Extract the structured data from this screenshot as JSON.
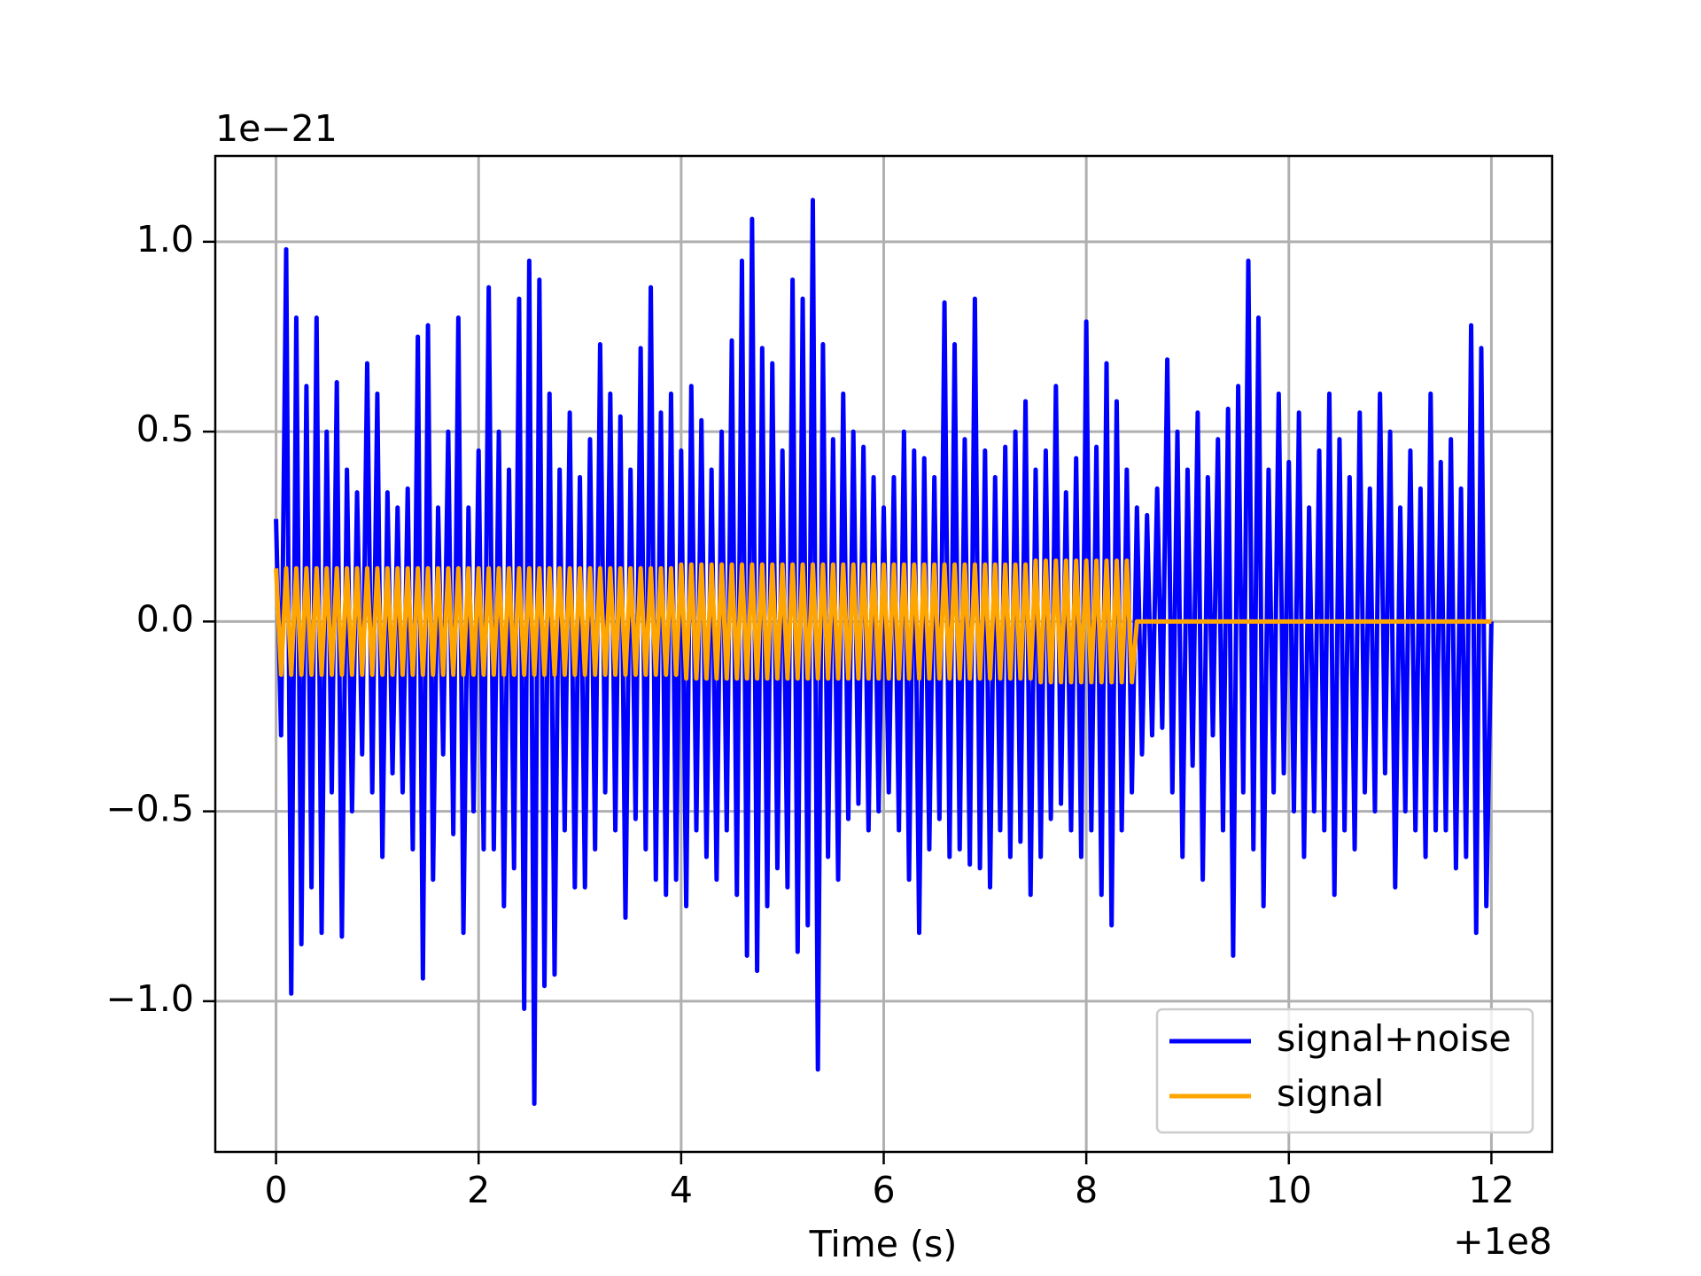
{
  "chart_data": {
    "type": "line",
    "xlabel": "Time (s)",
    "x_offset_label": "+1e8",
    "y_offset_label": "1e−21",
    "xlim": [
      -0.6,
      12.6
    ],
    "ylim": [
      -1.397,
      1.226
    ],
    "xticks": [
      0,
      2,
      4,
      6,
      8,
      10,
      12
    ],
    "yticks": [
      {
        "value": -1.0,
        "label": "−1.0"
      },
      {
        "value": -0.5,
        "label": "−0.5"
      },
      {
        "value": 0.0,
        "label": "0.0"
      },
      {
        "value": 0.5,
        "label": "0.5"
      },
      {
        "value": 1.0,
        "label": "1.0"
      }
    ],
    "grid": true,
    "legend": "lower right",
    "x": [
      0,
      0.05,
      0.1,
      0.15,
      0.2,
      0.25,
      0.3,
      0.35,
      0.4,
      0.45,
      0.5,
      0.55,
      0.6,
      0.65,
      0.7,
      0.75,
      0.8,
      0.85,
      0.9,
      0.95,
      1,
      1.05,
      1.1,
      1.15,
      1.2,
      1.25,
      1.3,
      1.35,
      1.4,
      1.45,
      1.5,
      1.55,
      1.6,
      1.65,
      1.7,
      1.75,
      1.8,
      1.85,
      1.9,
      1.95,
      2,
      2.05,
      2.1,
      2.15,
      2.2,
      2.25,
      2.3,
      2.35,
      2.4,
      2.45,
      2.5,
      2.55,
      2.6,
      2.65,
      2.7,
      2.75,
      2.8,
      2.85,
      2.9,
      2.95,
      3,
      3.05,
      3.1,
      3.15,
      3.2,
      3.25,
      3.3,
      3.35,
      3.4,
      3.45,
      3.5,
      3.55,
      3.6,
      3.65,
      3.7,
      3.75,
      3.8,
      3.85,
      3.9,
      3.95,
      4,
      4.05,
      4.1,
      4.15,
      4.2,
      4.25,
      4.3,
      4.35,
      4.4,
      4.45,
      4.5,
      4.55,
      4.6,
      4.65,
      4.7,
      4.75,
      4.8,
      4.85,
      4.9,
      4.95,
      5,
      5.05,
      5.1,
      5.15,
      5.2,
      5.25,
      5.3,
      5.35,
      5.4,
      5.45,
      5.5,
      5.55,
      5.6,
      5.65,
      5.7,
      5.75,
      5.8,
      5.85,
      5.9,
      5.95,
      6,
      6.05,
      6.1,
      6.15,
      6.2,
      6.25,
      6.3,
      6.35,
      6.4,
      6.45,
      6.5,
      6.55,
      6.6,
      6.65,
      6.7,
      6.75,
      6.8,
      6.85,
      6.9,
      6.95,
      7,
      7.05,
      7.1,
      7.15,
      7.2,
      7.25,
      7.3,
      7.35,
      7.4,
      7.45,
      7.5,
      7.55,
      7.6,
      7.65,
      7.7,
      7.75,
      7.8,
      7.85,
      7.9,
      7.95,
      8,
      8.05,
      8.1,
      8.15,
      8.2,
      8.25,
      8.3,
      8.35,
      8.4,
      8.45,
      8.5,
      8.55,
      8.6,
      8.65,
      8.7,
      8.75,
      8.8,
      8.85,
      8.9,
      8.95,
      9,
      9.05,
      9.1,
      9.15,
      9.2,
      9.25,
      9.3,
      9.35,
      9.4,
      9.45,
      9.5,
      9.55,
      9.6,
      9.65,
      9.7,
      9.75,
      9.8,
      9.85,
      9.9,
      9.95,
      10,
      10.05,
      10.1,
      10.15,
      10.2,
      10.25,
      10.3,
      10.35,
      10.4,
      10.45,
      10.5,
      10.55,
      10.6,
      10.65,
      10.7,
      10.75,
      10.8,
      10.85,
      10.9,
      10.95,
      11,
      11.05,
      11.1,
      11.15,
      11.2,
      11.25,
      11.3,
      11.35,
      11.4,
      11.45,
      11.5,
      11.55,
      11.6,
      11.65,
      11.7,
      11.75,
      11.8,
      11.85,
      11.9,
      11.95,
      12
    ],
    "series": [
      {
        "name": "signal+noise",
        "color": "#0000ff",
        "values": [
          0.27,
          -0.3,
          0.98,
          -0.98,
          0.8,
          -0.85,
          0.62,
          -0.7,
          0.8,
          -0.82,
          0.5,
          -0.45,
          0.63,
          -0.83,
          0.4,
          -0.5,
          0.34,
          -0.35,
          0.68,
          -0.45,
          0.6,
          -0.62,
          0.34,
          -0.4,
          0.3,
          -0.45,
          0.35,
          -0.6,
          0.75,
          -0.94,
          0.78,
          -0.68,
          0.3,
          -0.35,
          0.5,
          -0.56,
          0.8,
          -0.82,
          0.3,
          -0.5,
          0.45,
          -0.6,
          0.88,
          -0.6,
          0.5,
          -0.75,
          0.4,
          -0.65,
          0.85,
          -1.02,
          0.95,
          -1.27,
          0.9,
          -0.96,
          0.6,
          -0.93,
          0.4,
          -0.55,
          0.55,
          -0.7,
          0.38,
          -0.7,
          0.48,
          -0.6,
          0.73,
          -0.45,
          0.6,
          -0.55,
          0.54,
          -0.78,
          0.4,
          -0.52,
          0.72,
          -0.6,
          0.88,
          -0.68,
          0.55,
          -0.72,
          0.6,
          -0.68,
          0.45,
          -0.75,
          0.62,
          -0.55,
          0.53,
          -0.62,
          0.4,
          -0.68,
          0.5,
          -0.55,
          0.74,
          -0.72,
          0.95,
          -0.88,
          1.06,
          -0.92,
          0.72,
          -0.75,
          0.68,
          -0.65,
          0.45,
          -0.7,
          0.9,
          -0.87,
          0.85,
          -0.8,
          1.11,
          -1.18,
          0.73,
          -0.62,
          0.48,
          -0.68,
          0.6,
          -0.52,
          0.5,
          -0.48,
          0.46,
          -0.55,
          0.38,
          -0.5,
          0.3,
          -0.45,
          0.38,
          -0.55,
          0.5,
          -0.68,
          0.45,
          -0.82,
          0.43,
          -0.6,
          0.38,
          -0.52,
          0.84,
          -0.62,
          0.73,
          -0.6,
          0.48,
          -0.64,
          0.85,
          -0.65,
          0.45,
          -0.7,
          0.38,
          -0.55,
          0.46,
          -0.62,
          0.5,
          -0.58,
          0.58,
          -0.72,
          0.4,
          -0.62,
          0.45,
          -0.52,
          0.62,
          -0.48,
          0.34,
          -0.55,
          0.43,
          -0.62,
          0.79,
          -0.55,
          0.46,
          -0.72,
          0.68,
          -0.8,
          0.58,
          -0.55,
          0.4,
          -0.45,
          0.3,
          -0.35,
          0.28,
          -0.3,
          0.35,
          -0.28,
          0.69,
          -0.45,
          0.5,
          -0.62,
          0.4,
          -0.38,
          0.55,
          -0.68,
          0.38,
          -0.3,
          0.48,
          -0.55,
          0.56,
          -0.88,
          0.62,
          -0.45,
          0.95,
          -0.6,
          0.8,
          -0.75,
          0.4,
          -0.45,
          0.6,
          -0.4,
          0.42,
          -0.5,
          0.55,
          -0.62,
          0.3,
          -0.5,
          0.45,
          -0.55,
          0.6,
          -0.72,
          0.48,
          -0.55,
          0.38,
          -0.6,
          0.55,
          -0.45,
          0.35,
          -0.5,
          0.6,
          -0.4,
          0.5,
          -0.7,
          0.3,
          -0.5,
          0.45,
          -0.55,
          0.35,
          -0.62,
          0.6,
          -0.55,
          0.42,
          -0.55,
          0.48,
          -0.65,
          0.35,
          -0.62,
          0.78,
          -0.82,
          0.72,
          -0.75,
          0.0
        ]
      },
      {
        "name": "signal",
        "color": "#ffa500",
        "values": [
          0.14,
          -0.14,
          0.14,
          -0.14,
          0.14,
          -0.14,
          0.14,
          -0.14,
          0.14,
          -0.14,
          0.14,
          -0.14,
          0.14,
          -0.14,
          0.14,
          -0.14,
          0.14,
          -0.14,
          0.14,
          -0.14,
          0.14,
          -0.14,
          0.14,
          -0.14,
          0.14,
          -0.14,
          0.14,
          -0.14,
          0.14,
          -0.14,
          0.14,
          -0.14,
          0.14,
          -0.14,
          0.14,
          -0.14,
          0.14,
          -0.14,
          0.14,
          -0.14,
          0.14,
          -0.14,
          0.14,
          -0.14,
          0.14,
          -0.14,
          0.14,
          -0.14,
          0.14,
          -0.14,
          0.14,
          -0.14,
          0.14,
          -0.14,
          0.14,
          -0.14,
          0.14,
          -0.14,
          0.14,
          -0.14,
          0.14,
          -0.14,
          0.14,
          -0.14,
          0.14,
          -0.14,
          0.14,
          -0.14,
          0.14,
          -0.14,
          0.14,
          -0.14,
          0.14,
          -0.14,
          0.14,
          -0.14,
          0.14,
          -0.14,
          0.14,
          -0.14,
          0.15,
          -0.15,
          0.15,
          -0.15,
          0.15,
          -0.15,
          0.15,
          -0.15,
          0.15,
          -0.15,
          0.15,
          -0.15,
          0.15,
          -0.15,
          0.15,
          -0.15,
          0.15,
          -0.15,
          0.15,
          -0.15,
          0.15,
          -0.15,
          0.15,
          -0.15,
          0.15,
          -0.15,
          0.15,
          -0.15,
          0.15,
          -0.15,
          0.15,
          -0.15,
          0.15,
          -0.15,
          0.15,
          -0.15,
          0.15,
          -0.15,
          0.15,
          -0.15,
          0.15,
          -0.15,
          0.15,
          -0.15,
          0.15,
          -0.15,
          0.15,
          -0.15,
          0.15,
          -0.15,
          0.15,
          -0.15,
          0.15,
          -0.15,
          0.15,
          -0.15,
          0.15,
          -0.15,
          0.15,
          -0.15,
          0.15,
          -0.15,
          0.15,
          -0.15,
          0.15,
          -0.15,
          0.15,
          -0.15,
          0.15,
          -0.15,
          0.16,
          -0.16,
          0.16,
          -0.16,
          0.16,
          -0.16,
          0.16,
          -0.16,
          0.16,
          -0.16,
          0.16,
          -0.16,
          0.16,
          -0.16,
          0.16,
          -0.16,
          0.16,
          -0.16,
          0.16,
          -0.16,
          0,
          0,
          0,
          0,
          0,
          0,
          0,
          0,
          0,
          0,
          0,
          0,
          0,
          0,
          0,
          0,
          0,
          0,
          0,
          0,
          0,
          0,
          0,
          0,
          0,
          0,
          0,
          0,
          0,
          0,
          0,
          0,
          0,
          0,
          0,
          0,
          0,
          0,
          0,
          0,
          0,
          0,
          0,
          0,
          0,
          0,
          0,
          0,
          0,
          0,
          0,
          0,
          0,
          0,
          0,
          0,
          0,
          0,
          0,
          0,
          0,
          0,
          0,
          0,
          0,
          0,
          0,
          0,
          0,
          0,
          0
        ]
      }
    ]
  }
}
